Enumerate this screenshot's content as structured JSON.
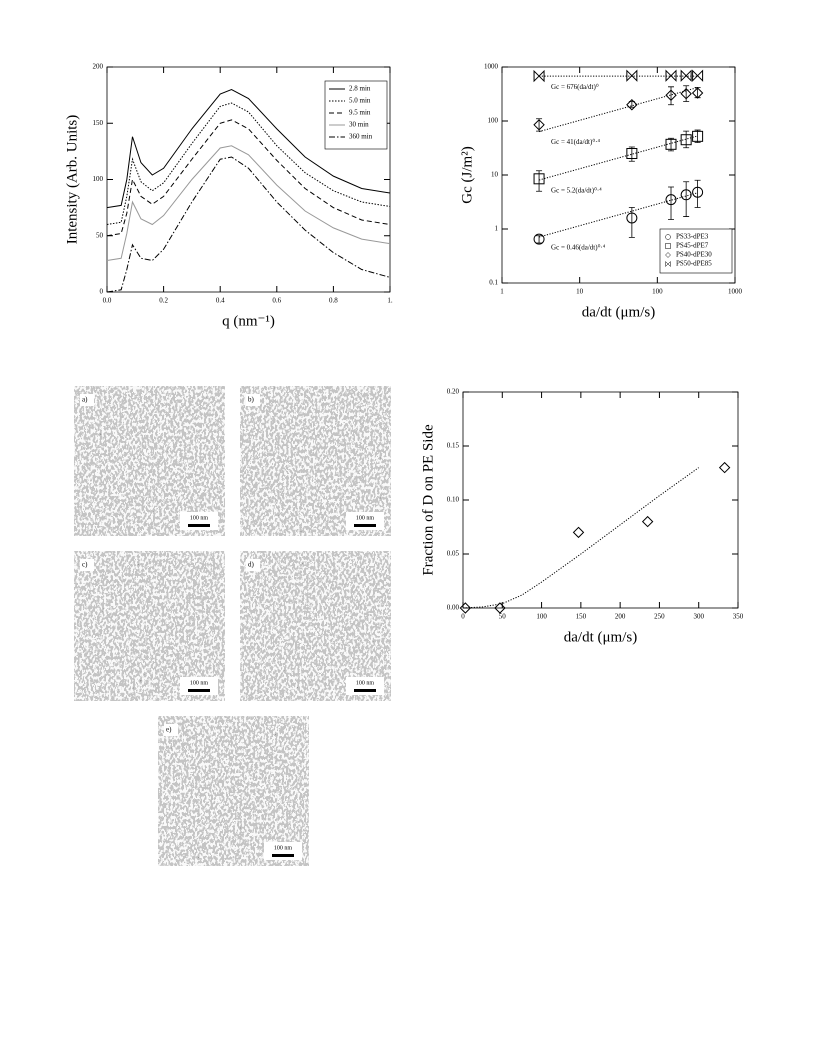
{
  "chart_data": [
    {
      "type": "line",
      "xlabel": "q (nm⁻¹)",
      "ylabel": "Intensity (Arb. Units)",
      "x": [
        0,
        0.05,
        0.07,
        0.09,
        0.12,
        0.16,
        0.2,
        0.3,
        0.4,
        0.44,
        0.5,
        0.6,
        0.7,
        0.8,
        0.9,
        1.0
      ],
      "series": [
        {
          "name": "2.8 min",
          "color": "#000000",
          "style": "solid",
          "values": [
            75,
            77,
            100,
            138,
            115,
            104,
            110,
            145,
            176,
            180,
            172,
            145,
            120,
            103,
            92,
            88
          ]
        },
        {
          "name": "5.0 min",
          "color": "#000000",
          "style": "dotted",
          "values": [
            60,
            62,
            85,
            118,
            98,
            90,
            97,
            132,
            165,
            168,
            160,
            130,
            106,
            90,
            80,
            76
          ]
        },
        {
          "name": "9.5 min",
          "color": "#000000",
          "style": "dashed",
          "values": [
            50,
            52,
            70,
            100,
            85,
            78,
            85,
            118,
            150,
            153,
            145,
            117,
            92,
            75,
            64,
            60
          ]
        },
        {
          "name": "30 min",
          "color": "#999999",
          "style": "solid",
          "values": [
            28,
            30,
            52,
            80,
            65,
            60,
            68,
            100,
            128,
            130,
            122,
            95,
            72,
            57,
            47,
            43
          ]
        },
        {
          "name": "360 min",
          "color": "#000000",
          "style": "dash-dot",
          "values": [
            0,
            2,
            20,
            42,
            30,
            28,
            38,
            80,
            118,
            120,
            110,
            80,
            55,
            35,
            20,
            13
          ]
        }
      ],
      "xlim": [
        0,
        1.0
      ],
      "xticks": [
        {
          "value": 0,
          "label": "0.0"
        },
        {
          "value": 0.2,
          "label": "0.2"
        },
        {
          "value": 0.4,
          "label": "0.4"
        },
        {
          "value": 0.6,
          "label": "0.6"
        },
        {
          "value": 0.8,
          "label": "0.8"
        },
        {
          "value": 1.0,
          "label": "1."
        }
      ],
      "ylim": [
        0,
        200
      ],
      "yticks": [
        0,
        50,
        100,
        150,
        200
      ],
      "legend": "upper right"
    },
    {
      "type": "scatter",
      "xlabel": "da/dt (μm/s)",
      "ylabel": "Gc (J/m²)",
      "xscale": "log",
      "yscale": "log",
      "x": [
        3,
        47,
        150,
        235,
        330
      ],
      "series": [
        {
          "name": "PS33-dPE3",
          "marker": "circle",
          "values": [
            0.65,
            1.6,
            3.5,
            4.3,
            4.8
          ],
          "lower": [
            0.55,
            0.7,
            1.5,
            1.7,
            2.5
          ],
          "upper": [
            0.75,
            2.5,
            6,
            7.5,
            8
          ]
        },
        {
          "name": "PS45-dPE7",
          "marker": "square",
          "values": [
            8.5,
            25,
            37,
            45,
            52
          ],
          "lower": [
            5,
            18,
            28,
            32,
            40
          ],
          "upper": [
            12,
            33,
            48,
            65,
            68
          ]
        },
        {
          "name": "PS40-dPE30",
          "marker": "diamond",
          "values": [
            85,
            200,
            300,
            320,
            330
          ],
          "lower": [
            65,
            180,
            200,
            230,
            270
          ],
          "upper": [
            110,
            230,
            430,
            450,
            420
          ]
        },
        {
          "name": "PS50-dPE85",
          "marker": "bowtie",
          "values": [
            680,
            690,
            690,
            690,
            690
          ]
        }
      ],
      "fits": [
        {
          "label": "Gc = 0.46(da/dt)⁰·⁴",
          "x": [
            3,
            330
          ],
          "y": [
            0.71,
            4.68
          ]
        },
        {
          "label": "Gc = 5.2(da/dt)⁰·⁴",
          "x": [
            3,
            330
          ],
          "y": [
            8.07,
            52.9
          ]
        },
        {
          "label": "Gc = 41(da/dt)⁰·⁴",
          "x": [
            3,
            330
          ],
          "y": [
            63.6,
            417
          ]
        },
        {
          "label": "Gc = 676(da/dt)⁰",
          "x": [
            3,
            330
          ],
          "y": [
            676,
            676
          ]
        }
      ],
      "xlim": [
        1,
        1000
      ],
      "xticks": [
        1,
        10,
        100,
        1000
      ],
      "ylim": [
        0.1,
        1000
      ],
      "yticks": [
        0.1,
        1,
        10,
        100,
        1000
      ],
      "legend": "lower right"
    },
    {
      "type": "scatter",
      "xlabel": "da/dt (μm/s)",
      "ylabel": "Fraction of D on PE Side",
      "marker": "diamond",
      "x": [
        3,
        47,
        147,
        235,
        333
      ],
      "values": [
        0,
        0,
        0.07,
        0.08,
        0.13
      ],
      "curve": {
        "x": [
          0,
          25,
          50,
          75,
          100,
          150,
          200,
          250,
          300
        ],
        "y": [
          0,
          0.001,
          0.004,
          0.012,
          0.024,
          0.05,
          0.077,
          0.104,
          0.13
        ]
      },
      "xlim": [
        0,
        350
      ],
      "xticks": [
        0,
        50,
        100,
        150,
        200,
        250,
        300,
        350
      ],
      "ylim": [
        0,
        0.2
      ],
      "yticks": [
        {
          "value": 0,
          "label": "0.00"
        },
        {
          "value": 0.05,
          "label": "0.05"
        },
        {
          "value": 0.1,
          "label": "0.10"
        },
        {
          "value": 0.15,
          "label": "0.15"
        },
        {
          "value": 0.2,
          "label": "0.20"
        }
      ]
    }
  ],
  "micrographs": [
    {
      "label": "a)",
      "scale": "100 nm"
    },
    {
      "label": "b)",
      "scale": "100 nm"
    },
    {
      "label": "c)",
      "scale": "100 nm"
    },
    {
      "label": "d)",
      "scale": "100 nm"
    },
    {
      "label": "e)",
      "scale": "100 nm"
    }
  ]
}
